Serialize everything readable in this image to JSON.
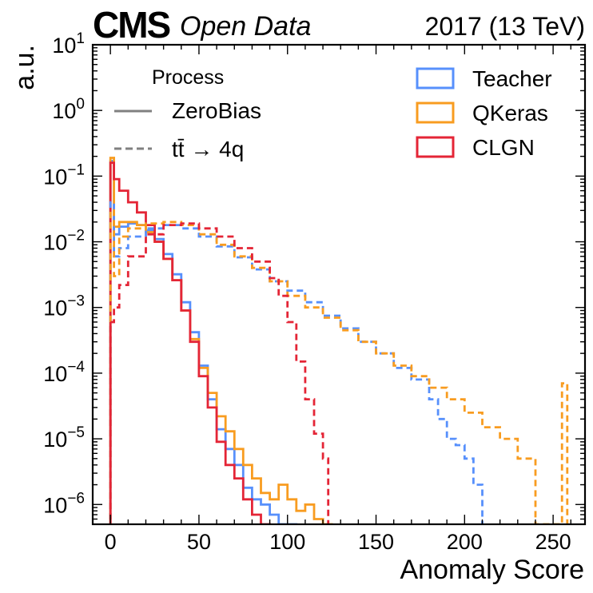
{
  "chart_data": {
    "type": "histogram",
    "header": {
      "experiment": "CMS",
      "status": "Open Data",
      "right_label": "2017 (13 TeV)"
    },
    "xlabel": "Anomaly Score",
    "ylabel": "a.u.",
    "xlim": [
      -10,
      268
    ],
    "ylim": [
      5e-07,
      10
    ],
    "yscale": "log",
    "x_ticks": [
      "0",
      "50",
      "100",
      "150",
      "200",
      "250"
    ],
    "y_ticks": [
      {
        "base": "10",
        "exp": "1"
      },
      {
        "base": "10",
        "exp": "0"
      },
      {
        "base": "10",
        "exp": "−1"
      },
      {
        "base": "10",
        "exp": "−2"
      },
      {
        "base": "10",
        "exp": "−3"
      },
      {
        "base": "10",
        "exp": "−4"
      },
      {
        "base": "10",
        "exp": "−5"
      },
      {
        "base": "10",
        "exp": "−6"
      }
    ],
    "legend_process": {
      "title": "Process",
      "entries": [
        {
          "label": "ZeroBias",
          "dash": "solid"
        },
        {
          "label_main": "tt̄",
          "label_rest": " → 4q",
          "dash": "dashed"
        }
      ]
    },
    "legend_models": [
      {
        "label": "Teacher",
        "color": "#5790fc"
      },
      {
        "label": "QKeras",
        "color": "#f89c20"
      },
      {
        "label": "CLGN",
        "color": "#e42536"
      }
    ],
    "series": [
      {
        "model": "Teacher",
        "process": "ZeroBias",
        "color": "#5790fc",
        "dash": "solid",
        "edges": [
          0,
          2,
          5,
          10,
          15,
          20,
          25,
          30,
          35,
          40,
          45,
          50,
          55,
          60,
          65,
          70,
          75,
          80,
          85,
          90,
          95,
          100,
          105
        ],
        "values": [
          0.17,
          0.013,
          0.017,
          0.019,
          0.018,
          0.015,
          0.011,
          0.0065,
          0.0032,
          0.0012,
          0.00042,
          0.00013,
          4e-05,
          1.4e-05,
          7e-06,
          4e-06,
          1.8e-06,
          1.2e-06,
          1e-06,
          7e-07,
          5e-07,
          5e-07
        ]
      },
      {
        "model": "QKeras",
        "process": "ZeroBias",
        "color": "#f89c20",
        "dash": "solid",
        "edges": [
          0,
          2,
          5,
          10,
          15,
          20,
          25,
          30,
          35,
          40,
          45,
          50,
          55,
          60,
          65,
          70,
          75,
          80,
          85,
          90,
          95,
          100,
          105,
          110,
          115,
          120,
          125
        ],
        "values": [
          0.19,
          0.017,
          0.02,
          0.02,
          0.018,
          0.014,
          0.01,
          0.0055,
          0.0026,
          0.0009,
          0.00033,
          0.00012,
          5e-05,
          2.2e-05,
          1.3e-05,
          7e-06,
          4e-06,
          2.5e-06,
          1.5e-06,
          1.2e-06,
          2e-06,
          1.2e-06,
          8e-07,
          1e-06,
          6e-07,
          5e-07
        ]
      },
      {
        "model": "CLGN",
        "process": "ZeroBias",
        "color": "#e42536",
        "dash": "solid",
        "edges": [
          0,
          2,
          5,
          10,
          15,
          20,
          25,
          30,
          35,
          40,
          45,
          50,
          55,
          60,
          65,
          70,
          75,
          80,
          85,
          90
        ],
        "values": [
          0.16,
          0.09,
          0.06,
          0.04,
          0.028,
          0.018,
          0.01,
          0.0055,
          0.0026,
          0.0009,
          0.0003,
          9e-05,
          3e-05,
          9e-06,
          4e-06,
          2.5e-06,
          1.2e-06,
          7e-07,
          5e-07
        ]
      },
      {
        "model": "Teacher",
        "process": "ttbar",
        "color": "#5790fc",
        "dash": "dashed",
        "edges": [
          0,
          2,
          5,
          10,
          20,
          30,
          40,
          50,
          60,
          70,
          80,
          90,
          100,
          110,
          120,
          130,
          140,
          150,
          160,
          170,
          180,
          185,
          190,
          195,
          200,
          205,
          210
        ],
        "values": [
          0.04,
          0.006,
          0.008,
          0.012,
          0.016,
          0.018,
          0.016,
          0.012,
          0.0085,
          0.0058,
          0.0038,
          0.0025,
          0.0018,
          0.0012,
          0.00075,
          0.00048,
          0.0003,
          0.0002,
          0.00012,
          8e-05,
          4e-05,
          2e-05,
          1e-05,
          8e-06,
          5e-06,
          2e-06
        ]
      },
      {
        "model": "QKeras",
        "process": "ttbar",
        "color": "#f89c20",
        "dash": "dashed",
        "edges": [
          0,
          2,
          5,
          10,
          20,
          30,
          40,
          50,
          60,
          70,
          80,
          90,
          100,
          110,
          120,
          130,
          140,
          150,
          160,
          170,
          180,
          190,
          200,
          210,
          220,
          230,
          240,
          255,
          258
        ],
        "values": [
          0.03,
          0.003,
          0.012,
          0.016,
          0.019,
          0.02,
          0.018,
          0.013,
          0.009,
          0.006,
          0.004,
          0.0025,
          0.0015,
          0.001,
          0.0007,
          0.00045,
          0.0003,
          0.0002,
          0.00013,
          9e-05,
          6e-05,
          4e-05,
          2.5e-05,
          1.5e-05,
          1e-05,
          5e-06,
          5e-07,
          7e-05
        ]
      },
      {
        "model": "CLGN",
        "process": "ttbar",
        "color": "#e42536",
        "dash": "dashed",
        "edges": [
          0,
          2,
          5,
          10,
          20,
          30,
          40,
          50,
          60,
          70,
          80,
          90,
          95,
          100,
          105,
          110,
          115,
          120,
          123
        ],
        "values": [
          0.0006,
          0.001,
          0.0022,
          0.006,
          0.013,
          0.018,
          0.019,
          0.016,
          0.012,
          0.008,
          0.005,
          0.0028,
          0.0015,
          0.0006,
          0.00015,
          4e-05,
          1.2e-05,
          5e-06
        ]
      }
    ]
  }
}
